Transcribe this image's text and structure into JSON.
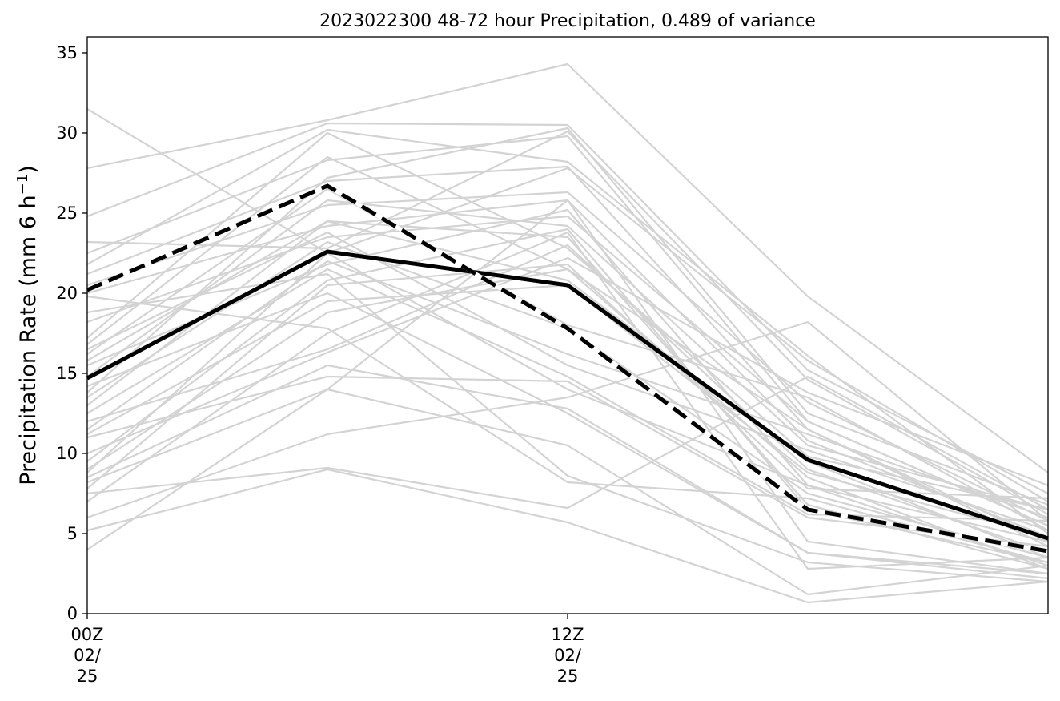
{
  "chart_data": {
    "type": "line",
    "title": "2023022300 48-72 hour Precipitation, 0.489 of variance",
    "ylabel": "Precipitation Rate (mm 6 h",
    "ylabel_superscript": "−1",
    "ylabel_close": ")",
    "xlabel": "",
    "x": [
      0,
      6,
      12,
      18,
      24
    ],
    "xlim": [
      0,
      24
    ],
    "ylim": [
      0,
      36
    ],
    "yticks": [
      0,
      5,
      10,
      15,
      20,
      25,
      30,
      35
    ],
    "xticks": [
      {
        "x": 0,
        "lines": [
          "00Z",
          "02/",
          "25"
        ]
      },
      {
        "x": 12,
        "lines": [
          "12Z",
          "02/",
          "25"
        ]
      }
    ],
    "grid": false,
    "legend": "none",
    "colors": {
      "member": "#d3d3d3",
      "highlight": "#000000",
      "highlight_dash_bg": "#ffffff"
    },
    "members": [
      [
        31.5,
        22.5,
        14.0,
        8.0,
        3.0
      ],
      [
        27.8,
        30.8,
        34.3,
        19.8,
        8.8
      ],
      [
        24.8,
        30.6,
        30.5,
        15.2,
        7.5
      ],
      [
        23.2,
        22.8,
        30.1,
        14.6,
        6.2
      ],
      [
        22.5,
        28.3,
        29.8,
        12.0,
        5.5
      ],
      [
        21.8,
        30.2,
        28.2,
        16.1,
        5.0
      ],
      [
        21.2,
        27.0,
        27.9,
        11.5,
        4.2
      ],
      [
        20.5,
        25.5,
        26.3,
        13.2,
        5.8
      ],
      [
        20.0,
        24.2,
        25.8,
        10.8,
        4.8
      ],
      [
        19.8,
        17.8,
        8.2,
        7.2,
        3.2
      ],
      [
        18.2,
        23.5,
        24.8,
        12.0,
        5.5
      ],
      [
        17.2,
        30.0,
        22.8,
        9.8,
        6.5
      ],
      [
        16.8,
        28.5,
        21.5,
        11.5,
        4.5
      ],
      [
        16.2,
        26.5,
        18.0,
        13.5,
        5.2
      ],
      [
        15.8,
        24.5,
        20.8,
        9.5,
        3.5
      ],
      [
        15.5,
        21.8,
        25.2,
        8.0,
        4.5
      ],
      [
        14.8,
        25.8,
        24.2,
        10.5,
        6.5
      ],
      [
        14.2,
        20.0,
        12.5,
        3.8,
        2.5
      ],
      [
        13.5,
        23.2,
        17.8,
        7.5,
        3.5
      ],
      [
        13.0,
        24.5,
        23.5,
        6.8,
        2.8
      ],
      [
        12.5,
        21.5,
        14.8,
        6.2,
        5.8
      ],
      [
        12.0,
        16.5,
        23.0,
        9.0,
        3.8
      ],
      [
        11.5,
        22.0,
        16.2,
        11.2,
        6.0
      ],
      [
        11.0,
        14.8,
        14.5,
        6.0,
        4.2
      ],
      [
        10.0,
        16.3,
        22.2,
        13.8,
        8.0
      ],
      [
        9.0,
        18.8,
        21.5,
        8.5,
        2.8
      ],
      [
        8.8,
        22.5,
        27.8,
        15.8,
        7.0
      ],
      [
        8.5,
        15.5,
        12.8,
        3.8,
        2.2
      ],
      [
        8.2,
        14.0,
        25.8,
        4.5,
        2.5
      ],
      [
        7.8,
        20.5,
        21.8,
        7.8,
        7.2
      ],
      [
        7.5,
        9.1,
        6.6,
        14.8,
        6.5
      ],
      [
        7.0,
        17.5,
        23.8,
        2.8,
        3.5
      ],
      [
        6.0,
        11.2,
        13.5,
        18.2,
        5.8
      ],
      [
        5.2,
        9.0,
        5.7,
        0.7,
        2.0
      ],
      [
        4.0,
        14.0,
        10.5,
        1.2,
        3.0
      ],
      [
        11.2,
        19.5,
        20.5,
        8.8,
        4.8
      ],
      [
        16.5,
        23.8,
        15.5,
        10.2,
        5.2
      ],
      [
        18.8,
        21.2,
        8.6,
        3.2,
        2.0
      ],
      [
        9.5,
        20.8,
        24.0,
        6.5,
        3.2
      ],
      [
        13.8,
        27.2,
        30.3,
        12.5,
        6.8
      ]
    ],
    "series": [
      {
        "style": "solid",
        "values": [
          14.7,
          22.6,
          20.5,
          9.6,
          4.7
        ]
      },
      {
        "style": "dashed",
        "values": [
          20.2,
          26.7,
          17.8,
          6.5,
          3.9
        ]
      }
    ]
  }
}
